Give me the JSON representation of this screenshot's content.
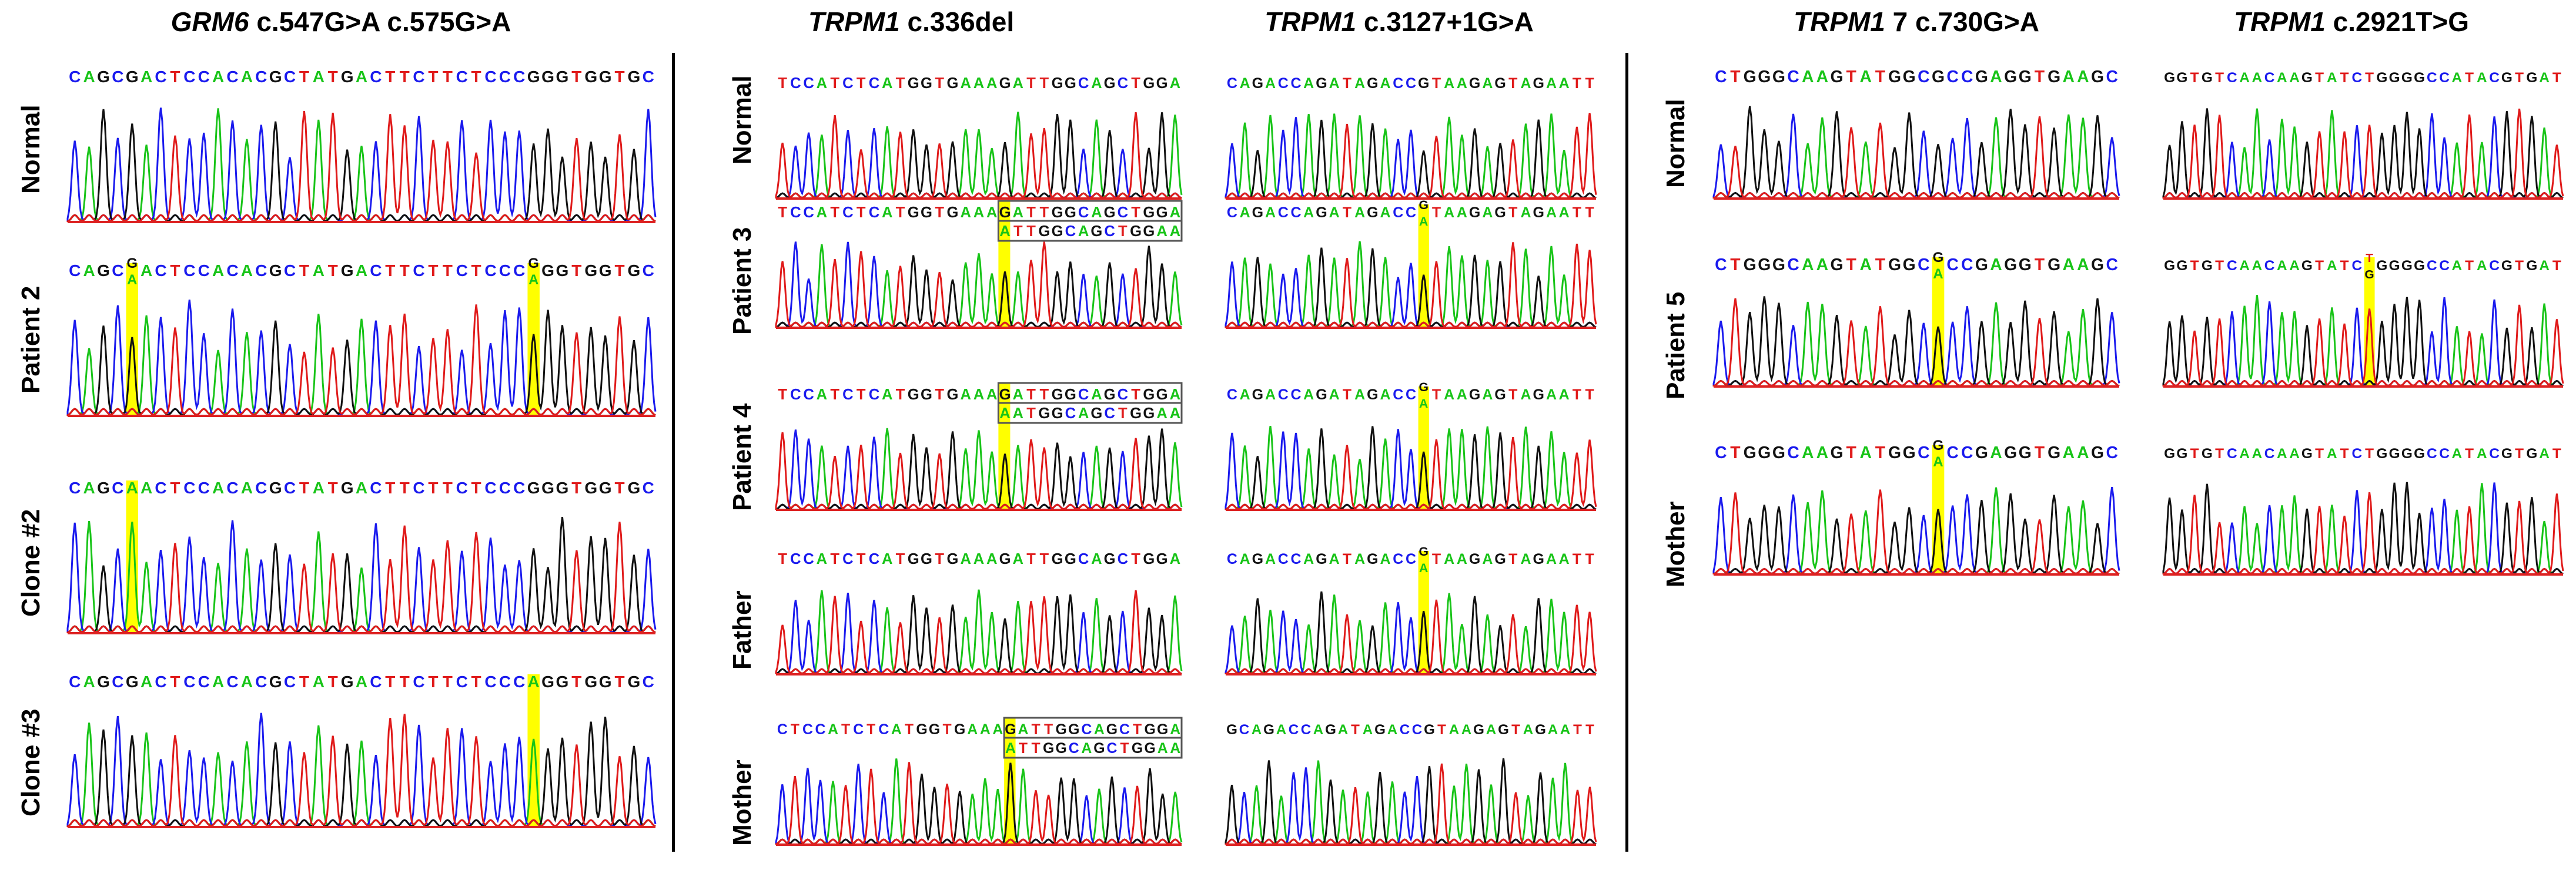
{
  "figure": {
    "colors": {
      "A": "#18c418",
      "C": "#1a1aee",
      "G": "#111111",
      "T": "#e01a1a",
      "highlight": "#ffff00",
      "baseline": "#dd2222"
    },
    "groups": [
      {
        "id": "grm6",
        "rows": [
          "Normal",
          "Patient 2",
          "Clone #2",
          "Clone #3"
        ],
        "columns": [
          {
            "title_gene": "GRM6",
            "title_variant": " c.547G>A c.575G>A",
            "sequences": [
              "CAGCGACTCCACACGCTATGACTTCTTCTCCCGGGTGGTGC",
              "CAGCGACTCCACACGCTATGACTTCTTCTCCCGGGTGGTGC",
              "CAGCAACTCCACACGCTATGACTTCTTCTCCCGGGTGGTGC",
              "CAGCGACTCCACACGCTATGACTTCTTCTCCCAGGTGGTGC"
            ],
            "highlights": [
              [],
              [
                4,
                32
              ],
              [
                4
              ],
              [
                32
              ]
            ],
            "stacks": [
              {},
              {
                "4": "GA",
                "32": "GA"
              },
              {},
              {}
            ]
          }
        ]
      },
      {
        "id": "trpm1-a",
        "rows": [
          "Normal",
          "Patient 3",
          "Patient 4",
          "Father",
          "Mother"
        ],
        "columns": [
          {
            "title_gene": "TRPM1",
            "title_variant": " c.336del",
            "sequences": [
              "TCCATCTCATGGTGAAAGATTGGCAGCTGGA",
              "TCCATCTCATGGTGAAAGATTGGCAGCTGGA",
              "TCCATCTCATGGTGAAAGATTGGCAGCTGGA",
              "TCCATCTCATGGTGAAAGATTGGCAGCTGGA",
              "CTCCATCTCATGGTGAAAGATTGGCAGCTGGA"
            ],
            "boxed_upper": "GATTGGCAGCTGGA",
            "boxed_lower": "ATTGGCAGCTGGAA",
            "boxed_lower_p4": "AATGGCAGCTGGAA",
            "boxed_rows": [
              1,
              2,
              4
            ]
          },
          {
            "title_gene": "TRPM1",
            "title_variant": " c.3127+1G>A",
            "sequences": [
              "CAGACCAGATAGACCGTAAGAGTAGAATT",
              "CAGACCAGATAGACCGTAAGAGTAGAATT",
              "CAGACCAGATAGACCGTAAGAGTAGAATT",
              "CAGACCAGATAGACCGTAAGAGTAGAATT",
              "GCAGACCAGATAGACCGTAAGAGTAGAATT"
            ],
            "highlights": [
              [],
              [
                15
              ],
              [
                15
              ],
              [
                15
              ],
              []
            ],
            "stacks": [
              {},
              {
                "15": "GA"
              },
              {
                "15": "GA"
              },
              {
                "15": "GA"
              },
              {}
            ]
          }
        ]
      },
      {
        "id": "trpm1-b",
        "rows": [
          "Normal",
          "Patient 5",
          "Mother"
        ],
        "columns": [
          {
            "title_gene": "TRPM1",
            "title_variant": " 7 c.730G>A",
            "sequences": [
              "CTGGGCAAGTATGGCGCCGAGGTGAAGC",
              "CTGGGCAAGTATGGCGCCGAGGTGAAGC",
              "CTGGGCAAGTATGGCGCCGAGGTGAAGC"
            ],
            "highlights": [
              [],
              [
                15
              ],
              [
                15
              ]
            ],
            "stacks": [
              {},
              {
                "15": "GA"
              },
              {
                "15": "GA"
              }
            ]
          },
          {
            "title_gene": "TRPM1",
            "title_variant": " c.2921T>G",
            "sequences": [
              "GGTGTCAACAAGTATCTGGGGCCATACGTGAT",
              "GGTGTCAACAAGTATCTGGGGCCATACGTGAT",
              "GGTGTCAACAAGTATCTGGGGCCATACGTGAT"
            ],
            "highlights": [
              [],
              [
                16
              ],
              []
            ],
            "stacks": [
              {},
              {
                "16": "TG"
              },
              {}
            ]
          }
        ]
      }
    ]
  }
}
